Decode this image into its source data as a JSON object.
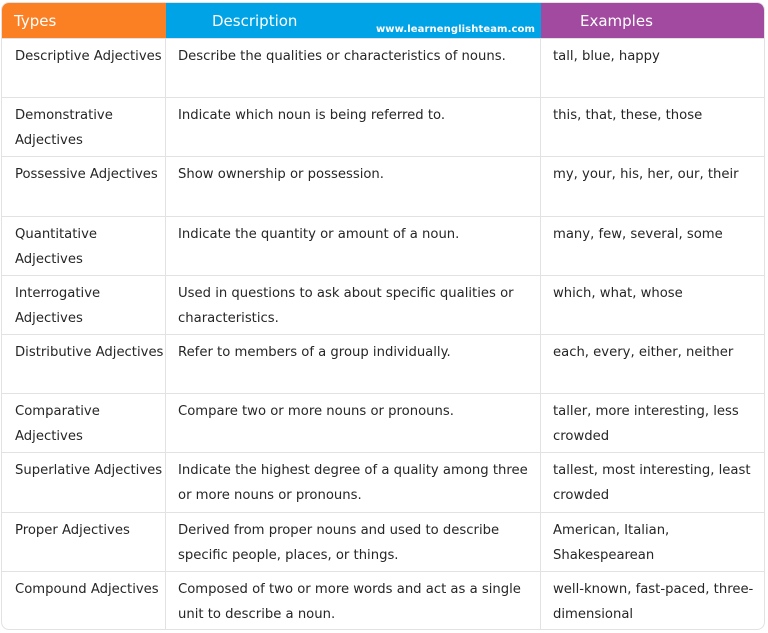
{
  "header": {
    "types": "Types",
    "description": "Description",
    "examples": "Examples",
    "watermark": "www.learnenglishteam.com",
    "colors": {
      "types": "#fb7f23",
      "description": "#00a3e5",
      "examples": "#a14a9f"
    }
  },
  "rows": [
    {
      "type": "Descriptive Adjectives",
      "description": "Describe the qualities or characteristics of nouns.",
      "examples": "tall, blue, happy"
    },
    {
      "type": "Demonstrative Adjectives",
      "description": "Indicate which noun is being referred to.",
      "examples": "this, that, these, those"
    },
    {
      "type": "Possessive Adjectives",
      "description": "Show ownership or possession.",
      "examples": "my, your, his, her, our, their"
    },
    {
      "type": "Quantitative Adjectives",
      "description": "Indicate the quantity or amount of a noun.",
      "examples": "many, few, several, some"
    },
    {
      "type": "Interrogative Adjectives",
      "description": "Used in questions to ask about specific qualities or characteristics.",
      "examples": "which, what, whose"
    },
    {
      "type": "Distributive Adjectives",
      "description": "Refer to members of a group individually.",
      "examples": "each, every, either, neither"
    },
    {
      "type": "Comparative Adjectives",
      "description": "Compare two or more nouns or pronouns.",
      "examples": "taller, more interesting, less crowded"
    },
    {
      "type": "Superlative Adjectives",
      "description": "Indicate the highest degree of a quality among three or more nouns or pronouns.",
      "examples": "tallest, most interesting, least crowded"
    },
    {
      "type": "Proper Adjectives",
      "description": "Derived from proper nouns and used to describe specific people, places, or things.",
      "examples": "American, Italian, Shakespearean"
    },
    {
      "type": "Compound Adjectives",
      "description": "Composed of two or more words and act as a single unit to describe a noun.",
      "examples": "well-known, fast-paced, three-dimensional"
    }
  ]
}
